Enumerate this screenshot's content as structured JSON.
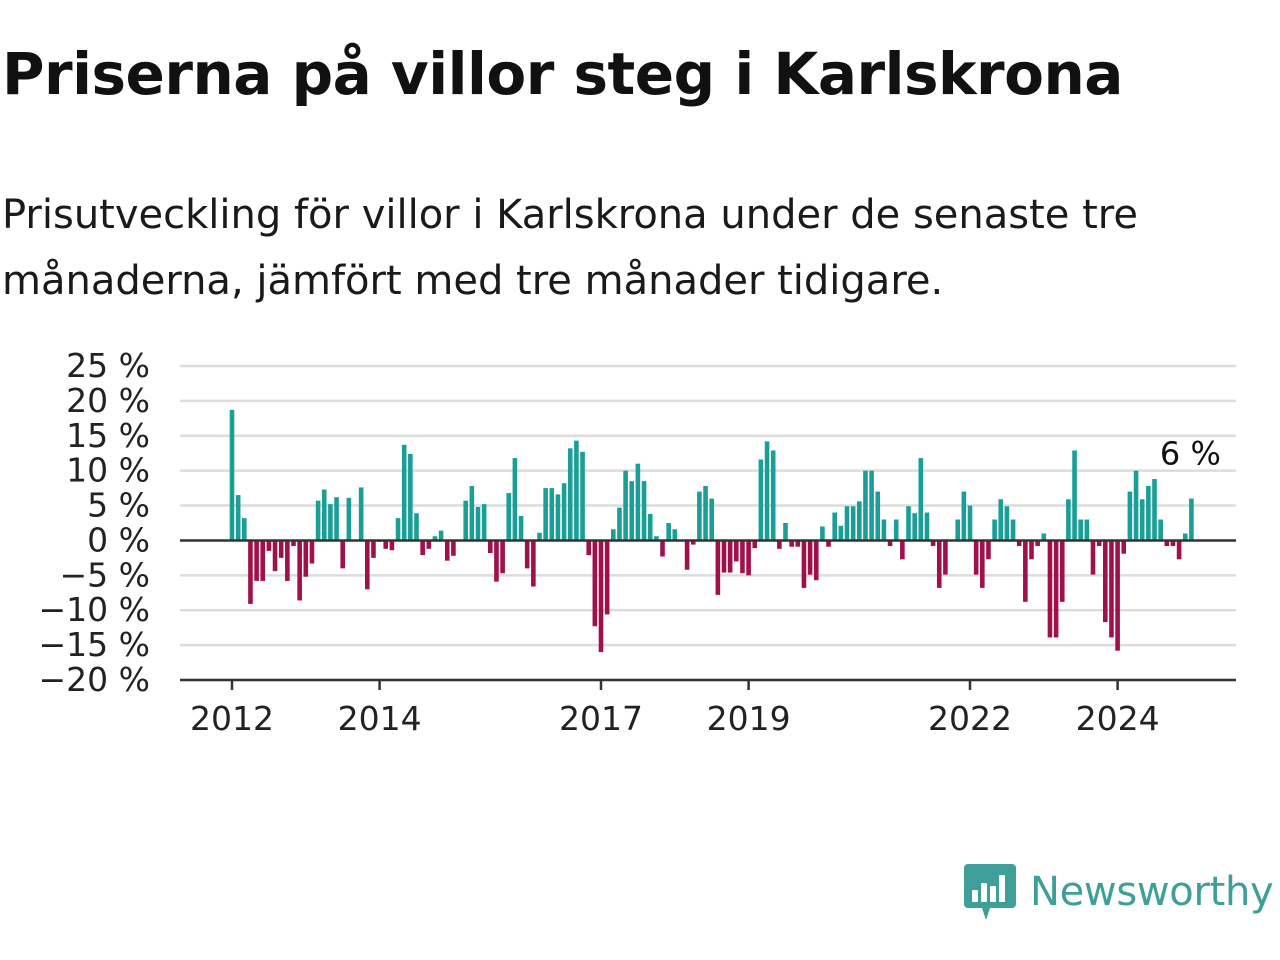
{
  "title": "Priserna på villor steg i Karlskrona",
  "subtitle": "Prisutveckling för villor i Karlskrona under de senaste tre månaderna, jämfört med tre månader tidigare.",
  "logo_text": "Newsworthy",
  "colors": {
    "positive": "#1a9e96",
    "negative": "#a0104a",
    "grid": "#dcdcdc",
    "axis": "#333333",
    "logo": "#3d9f97"
  },
  "chart_data": {
    "type": "bar",
    "x_start": "2012-01",
    "x_tick_labels": [
      {
        "label": "2012",
        "date": "2012-01"
      },
      {
        "label": "2014",
        "date": "2014-01"
      },
      {
        "label": "2017",
        "date": "2017-01"
      },
      {
        "label": "2019",
        "date": "2019-01"
      },
      {
        "label": "2022",
        "date": "2022-01"
      },
      {
        "label": "2024",
        "date": "2024-01"
      }
    ],
    "y_ticks": [
      25,
      20,
      15,
      10,
      5,
      0,
      -5,
      -10,
      -15,
      -20
    ],
    "y_tick_labels": [
      "25 %",
      "20 %",
      "15 %",
      "10 %",
      "5 %",
      "0 %",
      "−5 %",
      "−10 %",
      "−15 %",
      "−20 %"
    ],
    "ylim": [
      -20,
      25
    ],
    "grid": true,
    "last_label": "6 %",
    "values": [
      18.7,
      6.5,
      3.2,
      -9.1,
      -5.8,
      -5.8,
      -1.5,
      -4.4,
      -2.5,
      -5.8,
      -0.8,
      -8.6,
      -5.2,
      -3.3,
      5.7,
      7.3,
      5.2,
      6.2,
      -4.0,
      6.1,
      0.0,
      7.6,
      -7.0,
      -2.5,
      -0.2,
      -1.2,
      -1.4,
      3.2,
      13.7,
      12.4,
      3.9,
      -2.1,
      -1.2,
      0.6,
      1.4,
      -2.9,
      -2.2,
      0.0,
      5.7,
      7.8,
      4.8,
      5.2,
      -1.8,
      -5.9,
      -4.7,
      6.8,
      11.8,
      3.5,
      -4.0,
      -6.6,
      1.1,
      7.5,
      7.5,
      6.6,
      8.2,
      13.2,
      14.3,
      12.7,
      -2.1,
      -12.3,
      -16.0,
      -10.6,
      1.6,
      4.7,
      10.0,
      8.5,
      11.0,
      8.5,
      3.8,
      0.6,
      -2.3,
      2.5,
      1.6,
      0.0,
      -4.2,
      -0.6,
      7.0,
      7.8,
      6.0,
      -7.8,
      -4.6,
      -4.6,
      -3.0,
      -4.7,
      -5.0,
      -1.1,
      11.6,
      14.2,
      12.9,
      -1.2,
      2.5,
      -0.9,
      -0.9,
      -6.8,
      -4.9,
      -5.7,
      2.0,
      -0.9,
      4.0,
      2.1,
      4.9,
      4.9,
      5.6,
      10.0,
      10.0,
      7.0,
      3.0,
      -0.8,
      3.0,
      -2.7,
      4.9,
      3.9,
      11.8,
      4.0,
      -0.8,
      -6.8,
      -4.9,
      0.0,
      3.0,
      7.0,
      5.0,
      -4.9,
      -6.8,
      -2.7,
      3.0,
      5.9,
      4.9,
      3.0,
      -0.8,
      -8.8,
      -2.7,
      -0.8,
      1.0,
      -13.9,
      -13.9,
      -8.8,
      5.9,
      12.9,
      3.0,
      3.0,
      -4.9,
      -0.8,
      -11.7,
      -13.9,
      -15.8,
      -1.9,
      7.0,
      10.0,
      5.9,
      7.8,
      8.8,
      3.0,
      -0.8,
      -0.8,
      -2.7,
      1.0,
      6.0
    ]
  }
}
